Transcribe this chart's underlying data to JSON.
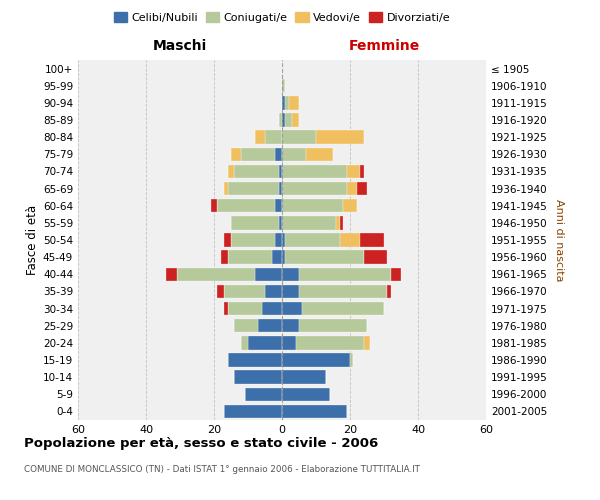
{
  "age_groups": [
    "0-4",
    "5-9",
    "10-14",
    "15-19",
    "20-24",
    "25-29",
    "30-34",
    "35-39",
    "40-44",
    "45-49",
    "50-54",
    "55-59",
    "60-64",
    "65-69",
    "70-74",
    "75-79",
    "80-84",
    "85-89",
    "90-94",
    "95-99",
    "100+"
  ],
  "birth_years": [
    "2001-2005",
    "1996-2000",
    "1991-1995",
    "1986-1990",
    "1981-1985",
    "1976-1980",
    "1971-1975",
    "1966-1970",
    "1961-1965",
    "1956-1960",
    "1951-1955",
    "1946-1950",
    "1941-1945",
    "1936-1940",
    "1931-1935",
    "1926-1930",
    "1921-1925",
    "1916-1920",
    "1911-1915",
    "1906-1910",
    "≤ 1905"
  ],
  "colors": {
    "celibe": "#3d6faa",
    "coniugato": "#b5c99a",
    "vedovo": "#f0c060",
    "divorziato": "#cc2222"
  },
  "maschi": {
    "celibe": [
      17,
      11,
      14,
      16,
      10,
      7,
      6,
      5,
      8,
      3,
      2,
      1,
      2,
      1,
      1,
      2,
      0,
      0,
      0,
      0,
      0
    ],
    "coniugato": [
      0,
      0,
      0,
      0,
      2,
      7,
      10,
      12,
      23,
      13,
      13,
      14,
      17,
      15,
      13,
      10,
      5,
      1,
      0,
      0,
      0
    ],
    "vedovo": [
      0,
      0,
      0,
      0,
      0,
      0,
      0,
      0,
      0,
      0,
      0,
      0,
      0,
      1,
      2,
      3,
      3,
      0,
      0,
      0,
      0
    ],
    "divorziato": [
      0,
      0,
      0,
      0,
      0,
      0,
      1,
      2,
      3,
      2,
      2,
      0,
      2,
      0,
      0,
      0,
      0,
      0,
      0,
      0,
      0
    ]
  },
  "femmine": {
    "nubile": [
      19,
      14,
      13,
      20,
      4,
      5,
      6,
      5,
      5,
      1,
      1,
      0,
      0,
      0,
      0,
      0,
      0,
      1,
      1,
      0,
      0
    ],
    "coniugata": [
      0,
      0,
      0,
      1,
      20,
      20,
      24,
      26,
      27,
      23,
      16,
      16,
      18,
      19,
      19,
      7,
      10,
      2,
      1,
      1,
      0
    ],
    "vedova": [
      0,
      0,
      0,
      0,
      2,
      0,
      0,
      0,
      0,
      0,
      6,
      1,
      4,
      3,
      4,
      8,
      14,
      2,
      3,
      0,
      0
    ],
    "divorziata": [
      0,
      0,
      0,
      0,
      0,
      0,
      0,
      1,
      3,
      7,
      7,
      1,
      0,
      3,
      1,
      0,
      0,
      0,
      0,
      0,
      0
    ]
  },
  "xlim": 60,
  "xlabel_left": "Maschi",
  "xlabel_right": "Femmine",
  "ylabel_left": "Fasce di età",
  "ylabel_right": "Anni di nascita",
  "title": "Popolazione per età, sesso e stato civile - 2006",
  "subtitle": "COMUNE DI MONCLASSICO (TN) - Dati ISTAT 1° gennaio 2006 - Elaborazione TUTTITALIA.IT",
  "legend_labels": [
    "Celibi/Nubili",
    "Coniugati/e",
    "Vedovi/e",
    "Divorziati/e"
  ],
  "background_color": "#f0f0f0",
  "grid_color": "#cccccc"
}
